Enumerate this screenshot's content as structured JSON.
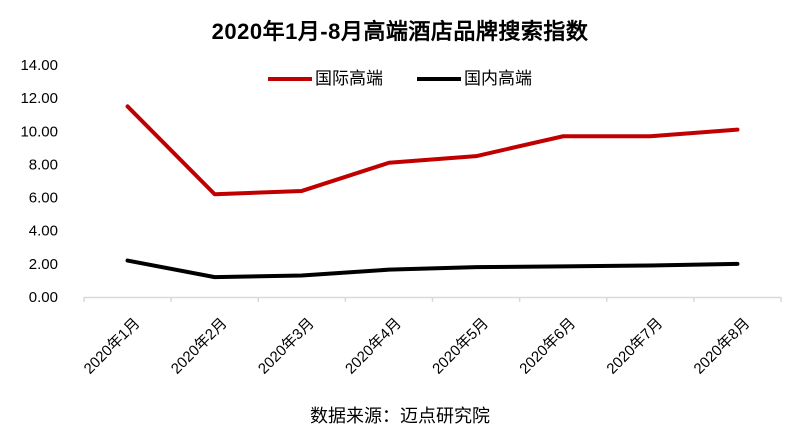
{
  "chart_data": {
    "type": "line",
    "title": "2020年1月-8月高端酒店品牌搜索指数",
    "categories": [
      "2020年1月",
      "2020年2月",
      "2020年3月",
      "2020年4月",
      "2020年5月",
      "2020年6月",
      "2020年7月",
      "2020年8月"
    ],
    "series": [
      {
        "name": "国际高端",
        "color": "#c00000",
        "values": [
          11.5,
          6.2,
          6.4,
          8.1,
          8.5,
          9.7,
          9.7,
          10.1
        ]
      },
      {
        "name": "国内高端",
        "color": "#000000",
        "values": [
          2.2,
          1.2,
          1.3,
          1.65,
          1.8,
          1.85,
          1.9,
          2.0
        ]
      }
    ],
    "ylim": [
      0,
      14
    ],
    "ytick_step": 2,
    "ytick_decimals": 2,
    "xlabel": "",
    "ylabel": "",
    "grid": false,
    "legend_position": "top-center",
    "x_label_rotation_deg": 45,
    "axis_color": "#d9d9d9",
    "text_color": "#000000",
    "background_color": "#ffffff"
  },
  "footer": {
    "source": "数据来源：迈点研究院"
  }
}
